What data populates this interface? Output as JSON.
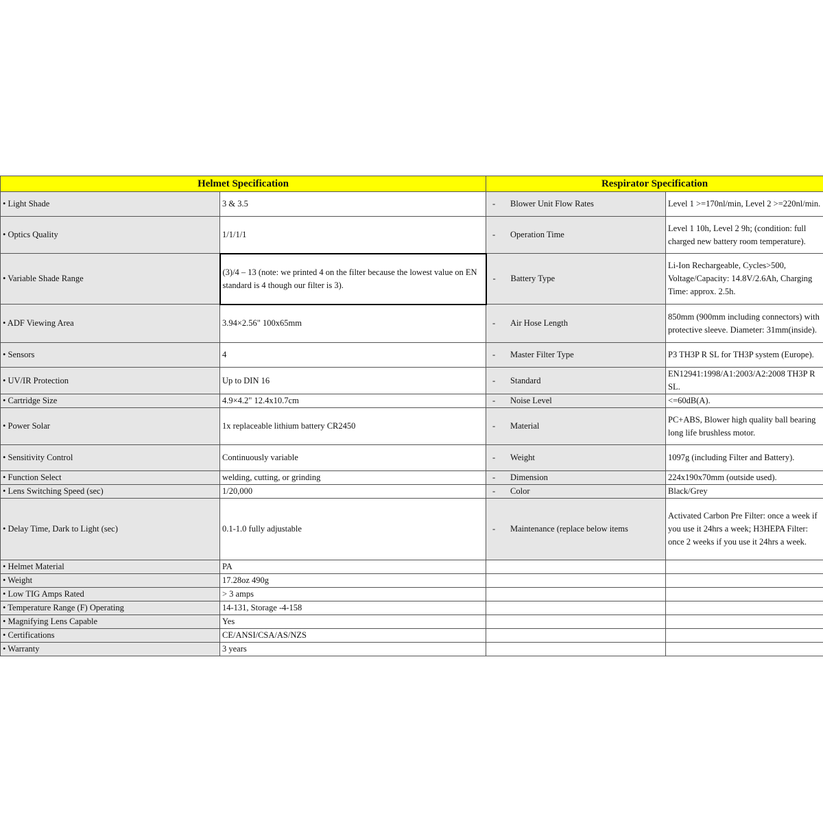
{
  "helmet_header": "Helmet Specification",
  "respirator_header": "Respirator Specification",
  "rows": [
    {
      "h_label": "• Light Shade",
      "h_value": "3 & 3.5",
      "r_label": "Blower Unit Flow Rates",
      "r_value": "Level 1 >=170nl/min, Level 2 >=220nl/min."
    },
    {
      "h_label": "• Optics Quality",
      "h_value": "1/1/1/1",
      "r_label": "Operation Time",
      "r_value": "Level 1 10h, Level 2 9h; (condition: full charged new battery room temperature)."
    },
    {
      "h_label": "• Variable Shade Range",
      "h_value": "(3)/4 – 13 (note: we printed 4 on the filter because the lowest value on EN standard is 4 though our filter is 3).",
      "r_label": "Battery Type",
      "r_value": "Li-Ion Rechargeable, Cycles>500, Voltage/Capacity: 14.8V/2.6Ah, Charging Time: approx. 2.5h."
    },
    {
      "h_label": "• ADF Viewing Area",
      "h_value": "3.94×2.56\"   100x65mm",
      "r_label": "Air Hose Length",
      "r_value": "850mm (900mm including connectors) with protective sleeve. Diameter: 31mm(inside)."
    },
    {
      "h_label": "• Sensors",
      "h_value": "4",
      "r_label": "Master Filter Type",
      "r_value": "P3 TH3P R SL for TH3P system (Europe)."
    },
    {
      "h_label": "• UV/IR Protection",
      "h_value": "Up to DIN 16",
      "r_label": "Standard",
      "r_value": "EN12941:1998/A1:2003/A2:2008 TH3P R SL."
    },
    {
      "h_label": "• Cartridge Size",
      "h_value": "4.9×4.2\"   12.4x10.7cm",
      "r_label": "Noise Level",
      "r_value": "<=60dB(A)."
    },
    {
      "h_label": "• Power Solar",
      "h_value": "1x replaceable lithium battery CR2450",
      "r_label": "Material",
      "r_value": "PC+ABS, Blower high quality ball bearing long life brushless motor."
    },
    {
      "h_label": "• Sensitivity Control",
      "h_value": "Continuously variable",
      "r_label": "Weight",
      "r_value": "1097g (including Filter and Battery)."
    },
    {
      "h_label": "• Function Select",
      "h_value": "welding, cutting, or grinding",
      "r_label": "Dimension",
      "r_value": "224x190x70mm (outside used)."
    },
    {
      "h_label": "• Lens Switching Speed (sec)",
      "h_value": "1/20,000",
      "r_label": "Color",
      "r_value": "Black/Grey"
    },
    {
      "h_label": "• Delay Time, Dark to Light (sec)",
      "h_value": "0.1-1.0 fully adjustable",
      "r_label": "Maintenance (replace below items",
      "r_value": "Activated Carbon Pre Filter: once a week if you use it 24hrs a week; H3HEPA Filter: once 2 weeks if you use it 24hrs a week."
    },
    {
      "h_label": "• Helmet Material",
      "h_value": "PA",
      "r_label": "",
      "r_value": ""
    },
    {
      "h_label": "• Weight",
      "h_value": "17.28oz 490g",
      "r_label": "",
      "r_value": ""
    },
    {
      "h_label": "• Low TIG Amps Rated",
      "h_value": "> 3 amps",
      "r_label": "",
      "r_value": ""
    },
    {
      "h_label": "• Temperature Range (F) Operating",
      "h_value": "14-131, Storage -4-158",
      "r_label": "",
      "r_value": ""
    },
    {
      "h_label": "• Magnifying Lens Capable",
      "h_value": "Yes",
      "r_label": "",
      "r_value": ""
    },
    {
      "h_label": "• Certifications",
      "h_value": "CE/ANSI/CSA/AS/NZS",
      "r_label": "",
      "r_value": ""
    },
    {
      "h_label": "• Warranty",
      "h_value": "3 years",
      "r_label": "",
      "r_value": ""
    }
  ],
  "colors": {
    "header_bg": "#ffff00",
    "label_bg": "#e6e6e6"
  }
}
